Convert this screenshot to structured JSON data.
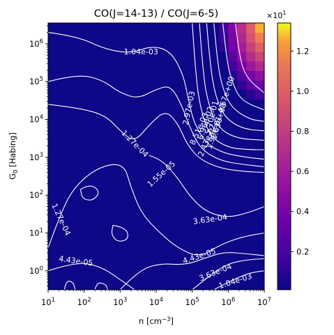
{
  "chart_data": {
    "type": "heatmap",
    "title": "CO(J=14-13) / CO(J=6-5)",
    "xlabel": "n [cm",
    "xlabel_sup": "−3",
    "xlabel_end": "]",
    "ylabel_main": "G",
    "ylabel_sub": "0",
    "ylabel_rest": " [Habing]",
    "x_scale": "log",
    "y_scale": "log",
    "x_range": [
      1,
      7
    ],
    "y_range": [
      -0.5,
      6.55
    ],
    "x_ticks": [
      {
        "exp": "1",
        "v": 1
      },
      {
        "exp": "2",
        "v": 2
      },
      {
        "exp": "3",
        "v": 3
      },
      {
        "exp": "4",
        "v": 4
      },
      {
        "exp": "5",
        "v": 5
      },
      {
        "exp": "6",
        "v": 6
      },
      {
        "exp": "7",
        "v": 7
      }
    ],
    "y_ticks": [
      {
        "exp": "0",
        "v": 0
      },
      {
        "exp": "1",
        "v": 1
      },
      {
        "exp": "2",
        "v": 2
      },
      {
        "exp": "3",
        "v": 3
      },
      {
        "exp": "4",
        "v": 4
      },
      {
        "exp": "5",
        "v": 5
      },
      {
        "exp": "6",
        "v": 6
      }
    ],
    "colormap": "plasma",
    "background_color": "#0d0887",
    "contour_color": "#ffffff",
    "colorbar": {
      "range": [
        0.01,
        1.34
      ],
      "ticks": [
        "0.2",
        "0.4",
        "0.6",
        "0.8",
        "1.0",
        "1.2"
      ],
      "tick_values": [
        0.2,
        0.4,
        0.6,
        0.8,
        1.0,
        1.2
      ],
      "offset_base": "×10",
      "offset_exp": "1"
    },
    "contour_labels": [
      {
        "text": "1.04e-03",
        "x": 3.58,
        "y": 5.78,
        "rot": 0
      },
      {
        "text": "4.67e+00",
        "x": 5.95,
        "y": 4.65,
        "rot": 72
      },
      {
        "text": "1.63e+00",
        "x": 5.75,
        "y": 3.95,
        "rot": 74
      },
      {
        "text": "5.70e-01",
        "x": 5.55,
        "y": 4.05,
        "rot": 76
      },
      {
        "text": "1.99e-01",
        "x": 5.62,
        "y": 3.65,
        "rot": 72
      },
      {
        "text": "6.96e-02",
        "x": 5.38,
        "y": 3.9,
        "rot": 72
      },
      {
        "text": "2.43e-02",
        "x": 5.42,
        "y": 3.45,
        "rot": 68
      },
      {
        "text": "8.51e-03",
        "x": 5.2,
        "y": 3.75,
        "rot": 66
      },
      {
        "text": "2.97e-03",
        "x": 4.92,
        "y": 4.3,
        "rot": 78
      },
      {
        "text": "1.27e-04",
        "x": 3.4,
        "y": 3.35,
        "rot": -45
      },
      {
        "text": "1.55e-05",
        "x": 4.15,
        "y": 2.55,
        "rot": 42
      },
      {
        "text": "3.63e-04",
        "x": 5.5,
        "y": 1.35,
        "rot": 8
      },
      {
        "text": "1.27e-04",
        "x": 1.35,
        "y": 1.35,
        "rot": -65
      },
      {
        "text": "4.43e-05",
        "x": 5.2,
        "y": 0.38,
        "rot": 18
      },
      {
        "text": "4.43e-05",
        "x": 1.77,
        "y": 0.25,
        "rot": -8
      },
      {
        "text": "3.63e-04",
        "x": 5.65,
        "y": -0.05,
        "rot": 22
      },
      {
        "text": "1.04e-03",
        "x": 6.2,
        "y": -0.28,
        "rot": 18
      }
    ]
  }
}
